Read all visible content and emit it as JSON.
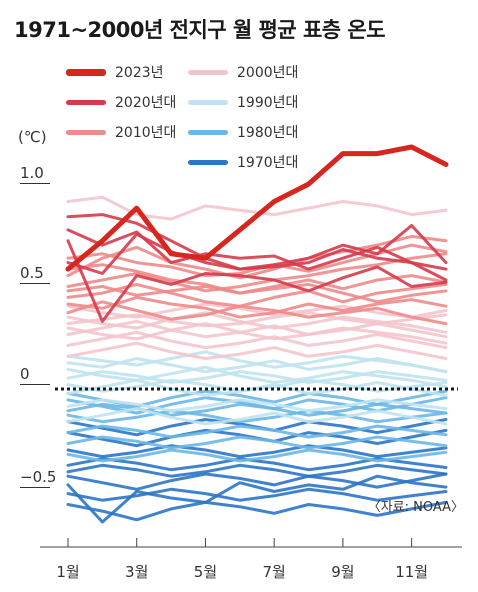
{
  "title": "1971~2000년 전지구 월 평균 표층 온도",
  "y_unit": "(℃)",
  "source": "〈자료: NOAA〉",
  "legend": [
    {
      "label": "2023년",
      "color": "#d7261e"
    },
    {
      "label": "2020년대",
      "color": "#d63a4a"
    },
    {
      "label": "2010년대",
      "color": "#ee8a8a"
    },
    {
      "label": "2000년대",
      "color": "#f4c4cb"
    },
    {
      "label": "1990년대",
      "color": "#bfe3f0"
    },
    {
      "label": "1980년대",
      "color": "#6ab7e6"
    },
    {
      "label": "1970년대",
      "color": "#2b76c7"
    }
  ],
  "chart_data": {
    "type": "line",
    "title": "1971~2000년 전지구 월 평균 표층 온도",
    "ylabel": "(℃)",
    "xlabel": "",
    "x": [
      1,
      2,
      3,
      4,
      5,
      6,
      7,
      8,
      9,
      10,
      11,
      12
    ],
    "x_tick_labels": [
      "1월",
      "3월",
      "5월",
      "7월",
      "9월",
      "11월"
    ],
    "x_tick_positions": [
      1,
      3,
      5,
      7,
      9,
      11
    ],
    "y_tick_labels": [
      "1.0",
      "0.5",
      "0",
      "−0.5"
    ],
    "y_tick_values": [
      1.0,
      0.5,
      0.0,
      -0.5
    ],
    "ylim": [
      -0.75,
      1.12
    ],
    "zero_line": "dotted",
    "series": [
      {
        "name": "2023년",
        "color": "#d7261e",
        "width": 5,
        "values": [
          0.55,
          0.68,
          0.83,
          0.62,
          0.6,
          0.73,
          0.86,
          0.94,
          1.08,
          1.08,
          1.11,
          1.03
        ]
      },
      {
        "name": "2020년대",
        "color": "#d63a4a",
        "width": 3,
        "values": [
          0.79,
          0.8,
          0.76,
          0.68,
          0.6,
          0.55,
          0.56,
          0.58,
          0.64,
          0.6,
          0.58,
          0.5
        ]
      },
      {
        "group": "2020년대",
        "color": "#d63a4a",
        "width": 3,
        "values": [
          0.58,
          0.53,
          0.71,
          0.63,
          0.58,
          0.55,
          0.57,
          0.6,
          0.66,
          0.62,
          0.75,
          0.58
        ]
      },
      {
        "group": "2020년대",
        "color": "#d63a4a",
        "width": 3,
        "values": [
          0.68,
          0.31,
          0.52,
          0.48,
          0.53,
          0.52,
          0.5,
          0.45,
          0.51,
          0.56,
          0.47,
          0.49
        ]
      },
      {
        "group": "2020년대",
        "color": "#d63a4a",
        "width": 3,
        "values": [
          0.73,
          0.66,
          0.72,
          0.58,
          0.62,
          0.6,
          0.61,
          0.55,
          0.6,
          0.65,
          0.58,
          0.55
        ]
      },
      {
        "name": "2010년대",
        "color": "#ee8a8a",
        "width": 3,
        "values": [
          0.52,
          0.6,
          0.65,
          0.58,
          0.55,
          0.51,
          0.55,
          0.6,
          0.63,
          0.66,
          0.7,
          0.68
        ]
      },
      {
        "group": "2010년대",
        "color": "#ee8a8a",
        "width": 3,
        "values": [
          0.6,
          0.62,
          0.58,
          0.56,
          0.52,
          0.53,
          0.57,
          0.54,
          0.58,
          0.62,
          0.66,
          0.63
        ]
      },
      {
        "group": "2010년대",
        "color": "#ee8a8a",
        "width": 3,
        "values": [
          0.47,
          0.5,
          0.53,
          0.49,
          0.45,
          0.47,
          0.5,
          0.52,
          0.55,
          0.57,
          0.6,
          0.62
        ]
      },
      {
        "group": "2010년대",
        "color": "#ee8a8a",
        "width": 3,
        "values": [
          0.42,
          0.44,
          0.48,
          0.44,
          0.4,
          0.38,
          0.42,
          0.45,
          0.4,
          0.44,
          0.46,
          0.48
        ]
      },
      {
        "group": "2010년대",
        "color": "#ee8a8a",
        "width": 3,
        "values": [
          0.39,
          0.37,
          0.42,
          0.39,
          0.37,
          0.33,
          0.35,
          0.39,
          0.36,
          0.39,
          0.41,
          0.38
        ]
      },
      {
        "group": "2010년대",
        "color": "#ee8a8a",
        "width": 3,
        "values": [
          0.55,
          0.57,
          0.54,
          0.5,
          0.48,
          0.44,
          0.47,
          0.5,
          0.46,
          0.5,
          0.52,
          0.49
        ]
      },
      {
        "group": "2010년대",
        "color": "#ee8a8a",
        "width": 3,
        "values": [
          0.35,
          0.4,
          0.36,
          0.32,
          0.34,
          0.38,
          0.36,
          0.33,
          0.35,
          0.37,
          0.33,
          0.3
        ]
      },
      {
        "group": "2010년대",
        "color": "#ee8a8a",
        "width": 3,
        "values": [
          0.45,
          0.47,
          0.43,
          0.45,
          0.47,
          0.44,
          0.46,
          0.48,
          0.44,
          0.4,
          0.43,
          0.45
        ]
      },
      {
        "name": "2000년대",
        "color": "#f4c4cb",
        "width": 3,
        "values": [
          0.3,
          0.32,
          0.34,
          0.31,
          0.29,
          0.3,
          0.33,
          0.35,
          0.32,
          0.3,
          0.32,
          0.34
        ]
      },
      {
        "group": "2000년대",
        "color": "#f4c4cb",
        "width": 3,
        "values": [
          0.25,
          0.28,
          0.31,
          0.27,
          0.24,
          0.26,
          0.29,
          0.25,
          0.27,
          0.3,
          0.27,
          0.24
        ]
      },
      {
        "group": "2000년대",
        "color": "#f4c4cb",
        "width": 3,
        "values": [
          0.86,
          0.88,
          0.8,
          0.78,
          0.84,
          0.82,
          0.8,
          0.83,
          0.86,
          0.84,
          0.8,
          0.82
        ]
      },
      {
        "group": "2000년대",
        "color": "#f4c4cb",
        "width": 3,
        "values": [
          0.38,
          0.35,
          0.33,
          0.36,
          0.39,
          0.37,
          0.34,
          0.36,
          0.38,
          0.35,
          0.33,
          0.36
        ]
      },
      {
        "group": "2000년대",
        "color": "#f4c4cb",
        "width": 3,
        "values": [
          0.2,
          0.23,
          0.26,
          0.22,
          0.19,
          0.21,
          0.24,
          0.2,
          0.22,
          0.25,
          0.22,
          0.19
        ]
      },
      {
        "group": "2000년대",
        "color": "#f4c4cb",
        "width": 3,
        "values": [
          0.33,
          0.3,
          0.28,
          0.32,
          0.35,
          0.31,
          0.28,
          0.3,
          0.33,
          0.31,
          0.29,
          0.26
        ]
      },
      {
        "group": "2000년대",
        "color": "#f4c4cb",
        "width": 3,
        "values": [
          0.15,
          0.18,
          0.21,
          0.17,
          0.14,
          0.16,
          0.19,
          0.15,
          0.17,
          0.2,
          0.17,
          0.14
        ]
      },
      {
        "group": "2000년대",
        "color": "#f4c4cb",
        "width": 3,
        "values": [
          0.28,
          0.25,
          0.23,
          0.27,
          0.3,
          0.26,
          0.23,
          0.25,
          0.28,
          0.26,
          0.24,
          0.21
        ]
      },
      {
        "name": "1990년대",
        "color": "#bfe3f0",
        "width": 3,
        "values": [
          0.12,
          0.1,
          0.14,
          0.11,
          0.08,
          0.1,
          0.13,
          0.09,
          0.11,
          0.14,
          0.11,
          0.08
        ]
      },
      {
        "group": "1990년대",
        "color": "#bfe3f0",
        "width": 3,
        "values": [
          0.05,
          0.08,
          0.06,
          0.03,
          0.05,
          0.08,
          0.06,
          0.03,
          0.05,
          0.08,
          0.06,
          0.04
        ]
      },
      {
        "group": "1990년대",
        "color": "#bfe3f0",
        "width": 3,
        "values": [
          -0.02,
          0.01,
          0.04,
          0.0,
          -0.03,
          -0.01,
          0.02,
          -0.02,
          0.0,
          0.03,
          0.0,
          -0.03
        ]
      },
      {
        "group": "1990년대",
        "color": "#bfe3f0",
        "width": 3,
        "values": [
          0.15,
          0.13,
          0.11,
          0.14,
          0.17,
          0.13,
          0.1,
          0.12,
          0.15,
          0.13,
          0.11,
          0.08
        ]
      },
      {
        "group": "1990년대",
        "color": "#bfe3f0",
        "width": 3,
        "values": [
          -0.08,
          -0.05,
          -0.07,
          -0.1,
          -0.08,
          -0.05,
          -0.07,
          -0.1,
          -0.08,
          -0.05,
          -0.07,
          -0.09
        ]
      },
      {
        "group": "1990년대",
        "color": "#bfe3f0",
        "width": 3,
        "values": [
          0.09,
          0.06,
          0.04,
          0.07,
          0.1,
          0.06,
          0.03,
          0.05,
          0.08,
          0.06,
          0.04,
          0.01
        ]
      },
      {
        "group": "1990년대",
        "color": "#bfe3f0",
        "width": 3,
        "values": [
          -0.15,
          -0.12,
          -0.09,
          -0.13,
          -0.16,
          -0.14,
          -0.11,
          -0.15,
          -0.13,
          -0.1,
          -0.13,
          -0.16
        ]
      },
      {
        "group": "1990년대",
        "color": "#bfe3f0",
        "width": 3,
        "values": [
          0.02,
          -0.01,
          0.01,
          0.04,
          0.02,
          -0.01,
          0.01,
          0.04,
          0.02,
          -0.01,
          0.01,
          0.03
        ]
      },
      {
        "name": "1980년대",
        "color": "#6ab7e6",
        "width": 3,
        "values": [
          -0.05,
          -0.08,
          -0.11,
          -0.07,
          -0.04,
          -0.06,
          -0.09,
          -0.05,
          -0.07,
          -0.1,
          -0.07,
          -0.04
        ]
      },
      {
        "group": "1980년대",
        "color": "#6ab7e6",
        "width": 3,
        "values": [
          -0.12,
          -0.15,
          -0.13,
          -0.1,
          -0.12,
          -0.15,
          -0.13,
          -0.1,
          -0.12,
          -0.15,
          -0.13,
          -0.11
        ]
      },
      {
        "group": "1980년대",
        "color": "#6ab7e6",
        "width": 3,
        "values": [
          -0.2,
          -0.17,
          -0.19,
          -0.22,
          -0.2,
          -0.17,
          -0.19,
          -0.22,
          -0.2,
          -0.17,
          -0.19,
          -0.21
        ]
      },
      {
        "group": "1980년대",
        "color": "#6ab7e6",
        "width": 3,
        "values": [
          -0.02,
          -0.05,
          -0.08,
          -0.04,
          -0.01,
          -0.03,
          -0.06,
          -0.02,
          -0.04,
          -0.07,
          -0.04,
          -0.01
        ]
      },
      {
        "group": "1980년대",
        "color": "#6ab7e6",
        "width": 3,
        "values": [
          -0.25,
          -0.22,
          -0.24,
          -0.27,
          -0.25,
          -0.22,
          -0.24,
          -0.27,
          -0.25,
          -0.22,
          -0.24,
          -0.26
        ]
      },
      {
        "group": "1980년대",
        "color": "#6ab7e6",
        "width": 3,
        "values": [
          -0.3,
          -0.33,
          -0.31,
          -0.28,
          -0.3,
          -0.33,
          -0.31,
          -0.28,
          -0.3,
          -0.33,
          -0.31,
          -0.29
        ]
      },
      {
        "group": "1980년대",
        "color": "#6ab7e6",
        "width": 3,
        "values": [
          -0.1,
          -0.07,
          -0.09,
          -0.12,
          -0.1,
          -0.07,
          -0.09,
          -0.12,
          -0.1,
          -0.07,
          -0.09,
          -0.11
        ]
      },
      {
        "name": "1970년대",
        "color": "#2b76c7",
        "width": 3,
        "values": [
          -0.2,
          -0.23,
          -0.26,
          -0.22,
          -0.19,
          -0.21,
          -0.24,
          -0.2,
          -0.22,
          -0.25,
          -0.22,
          -0.19
        ]
      },
      {
        "group": "1970년대",
        "color": "#2b76c7",
        "width": 3,
        "values": [
          -0.28,
          -0.31,
          -0.29,
          -0.26,
          -0.28,
          -0.31,
          -0.29,
          -0.26,
          -0.28,
          -0.31,
          -0.29,
          -0.27
        ]
      },
      {
        "group": "1970년대",
        "color": "#2b76c7",
        "width": 3,
        "values": [
          -0.35,
          -0.32,
          -0.34,
          -0.37,
          -0.35,
          -0.32,
          -0.34,
          -0.37,
          -0.35,
          -0.32,
          -0.34,
          -0.36
        ]
      },
      {
        "group": "1970년대",
        "color": "#2b76c7",
        "width": 3,
        "values": [
          -0.4,
          -0.43,
          -0.46,
          -0.42,
          -0.39,
          -0.41,
          -0.44,
          -0.4,
          -0.42,
          -0.45,
          -0.42,
          -0.39
        ]
      },
      {
        "group": "1970년대",
        "color": "#2b76c7",
        "width": 3,
        "values": [
          -0.48,
          -0.51,
          -0.49,
          -0.46,
          -0.48,
          -0.51,
          -0.49,
          -0.46,
          -0.48,
          -0.51,
          -0.49,
          -0.47
        ]
      },
      {
        "group": "1970년대",
        "color": "#2b76c7",
        "width": 3,
        "values": [
          -0.53,
          -0.56,
          -0.6,
          -0.55,
          -0.52,
          -0.54,
          -0.57,
          -0.53,
          -0.55,
          -0.58,
          -0.55,
          -0.52
        ]
      },
      {
        "group": "1970년대",
        "color": "#2b76c7",
        "width": 3,
        "values": [
          -0.44,
          -0.61,
          -0.47,
          -0.5,
          -0.52,
          -0.43,
          -0.47,
          -0.44,
          -0.46,
          -0.4,
          -0.43,
          -0.45
        ]
      },
      {
        "group": "1970년대",
        "color": "#2b76c7",
        "width": 3,
        "values": [
          -0.15,
          -0.18,
          -0.21,
          -0.17,
          -0.14,
          -0.16,
          -0.19,
          -0.15,
          -0.17,
          -0.2,
          -0.17,
          -0.14
        ]
      },
      {
        "group": "1970년대",
        "color": "#2b76c7",
        "width": 3,
        "values": [
          -0.38,
          -0.35,
          -0.37,
          -0.4,
          -0.38,
          -0.35,
          -0.37,
          -0.4,
          -0.38,
          -0.35,
          -0.37,
          -0.39
        ]
      }
    ]
  }
}
